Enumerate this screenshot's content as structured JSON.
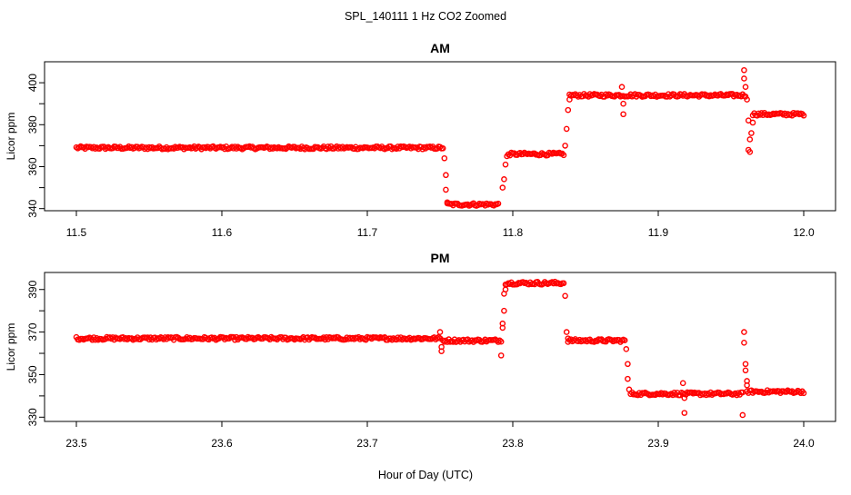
{
  "main_title": "SPL_140111  1 Hz CO2 Zoomed",
  "xlabel": "Hour of Day (UTC)",
  "colors": {
    "points": "#ff0000",
    "axis": "#000000",
    "background": "#ffffff"
  },
  "chart_data": [
    {
      "type": "scatter",
      "title": "AM",
      "ylabel": "Licor ppm",
      "xlim": [
        11.5,
        12.0
      ],
      "ylim": [
        339,
        410
      ],
      "xticks": [
        "11.5",
        "11.6",
        "11.7",
        "11.8",
        "11.9",
        "12.0"
      ],
      "yticks": [
        "340",
        "360",
        "380",
        "400"
      ],
      "series": [
        {
          "segments": [
            {
              "x_start": 11.5,
              "x_end": 11.752,
              "y": 369
            },
            {
              "x_start": 11.755,
              "x_end": 11.79,
              "y": 342
            },
            {
              "x_start": 11.797,
              "x_end": 11.835,
              "y": 366
            },
            {
              "x_start": 11.839,
              "x_end": 11.96,
              "y": 394
            },
            {
              "x_start": 11.965,
              "x_end": 12.0,
              "y": 385
            }
          ],
          "points": [
            [
              11.753,
              364
            ],
            [
              11.754,
              356
            ],
            [
              11.754,
              349
            ],
            [
              11.755,
              343
            ],
            [
              11.793,
              350
            ],
            [
              11.794,
              354
            ],
            [
              11.795,
              361
            ],
            [
              11.796,
              365
            ],
            [
              11.836,
              370
            ],
            [
              11.837,
              378
            ],
            [
              11.838,
              387
            ],
            [
              11.839,
              392
            ],
            [
              11.875,
              398
            ],
            [
              11.876,
              390
            ],
            [
              11.876,
              385
            ],
            [
              11.959,
              406
            ],
            [
              11.959,
              402
            ],
            [
              11.96,
              398
            ],
            [
              11.961,
              392
            ],
            [
              11.962,
              382
            ],
            [
              11.963,
              373
            ],
            [
              11.962,
              368
            ],
            [
              11.963,
              367
            ],
            [
              11.964,
              376
            ],
            [
              11.965,
              381
            ]
          ]
        }
      ]
    },
    {
      "type": "scatter",
      "title": "PM",
      "ylabel": "Licor ppm",
      "xlim": [
        23.5,
        24.0
      ],
      "ylim": [
        328,
        398
      ],
      "xticks": [
        "23.5",
        "23.6",
        "23.7",
        "23.8",
        "23.9",
        "24.0"
      ],
      "yticks": [
        "330",
        "350",
        "370",
        "390"
      ],
      "series": [
        {
          "segments": [
            {
              "x_start": 23.5,
              "x_end": 23.75,
              "y": 367
            },
            {
              "x_start": 23.752,
              "x_end": 23.792,
              "y": 366
            },
            {
              "x_start": 23.795,
              "x_end": 23.835,
              "y": 393
            },
            {
              "x_start": 23.838,
              "x_end": 23.877,
              "y": 366
            },
            {
              "x_start": 23.881,
              "x_end": 23.958,
              "y": 341
            },
            {
              "x_start": 23.961,
              "x_end": 24.0,
              "y": 342
            }
          ],
          "points": [
            [
              23.75,
              370
            ],
            [
              23.751,
              363
            ],
            [
              23.751,
              361
            ],
            [
              23.792,
              359
            ],
            [
              23.793,
              372
            ],
            [
              23.793,
              374
            ],
            [
              23.794,
              380
            ],
            [
              23.794,
              388
            ],
            [
              23.795,
              390
            ],
            [
              23.836,
              387
            ],
            [
              23.837,
              370
            ],
            [
              23.838,
              367
            ],
            [
              23.878,
              362
            ],
            [
              23.879,
              355
            ],
            [
              23.879,
              348
            ],
            [
              23.88,
              343
            ],
            [
              23.917,
              346
            ],
            [
              23.918,
              339
            ],
            [
              23.918,
              332
            ],
            [
              23.959,
              370
            ],
            [
              23.959,
              365
            ],
            [
              23.96,
              355
            ],
            [
              23.96,
              352
            ],
            [
              23.961,
              347
            ],
            [
              23.961,
              345
            ],
            [
              23.958,
              331
            ]
          ]
        }
      ]
    }
  ]
}
